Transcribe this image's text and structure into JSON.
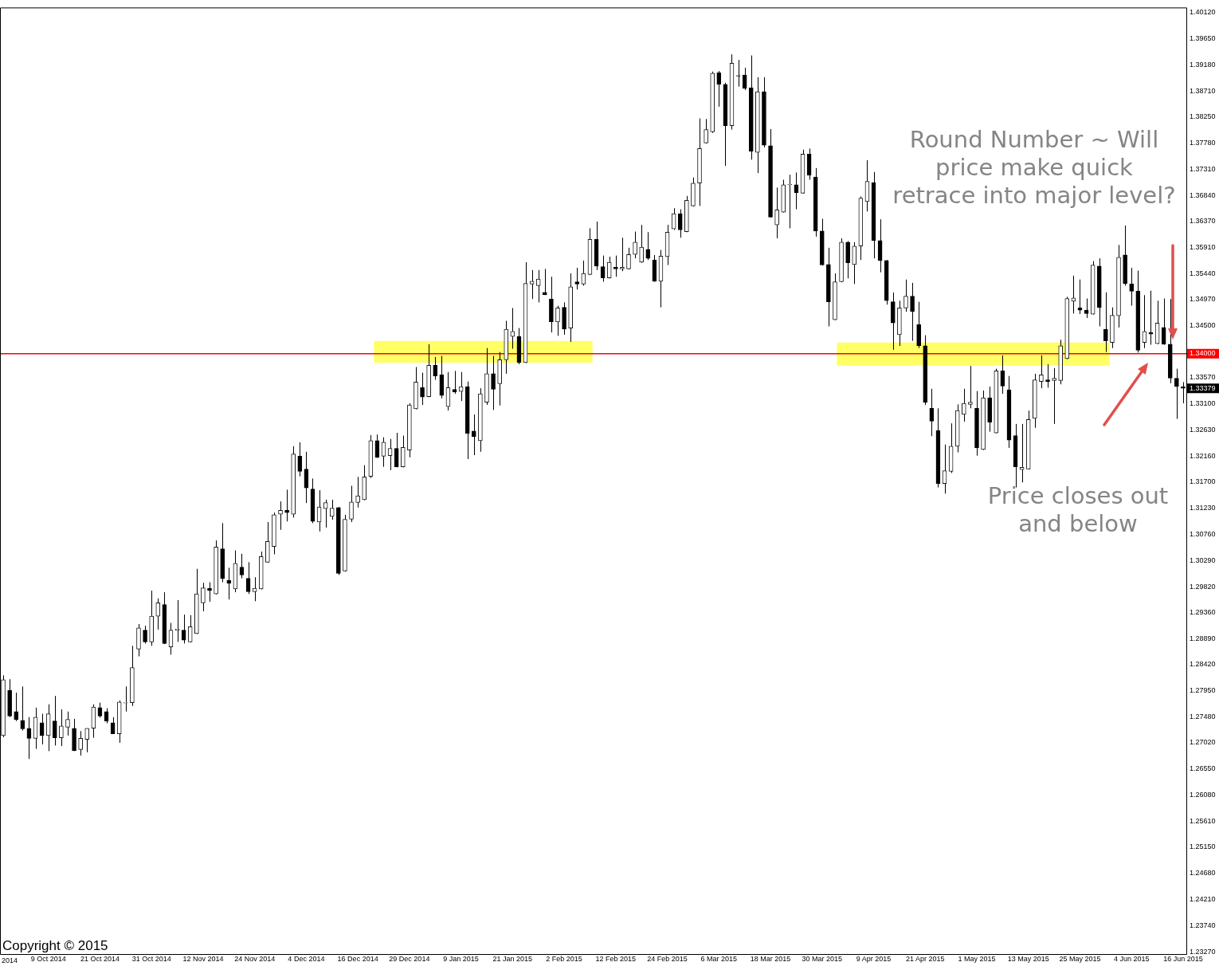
{
  "chart_data": {
    "type": "candlestick",
    "categories": [
      null,
      null,
      null,
      null,
      null,
      null,
      null,
      "9 Oct 2014",
      null,
      null,
      null,
      null,
      null,
      null,
      null,
      "21 Oct 2014",
      null,
      null,
      null,
      null,
      null,
      null,
      null,
      "31 Oct 2014",
      null,
      null,
      null,
      null,
      null,
      null,
      null,
      "12 Nov 2014",
      null,
      null,
      null,
      null,
      null,
      null,
      null,
      "24 Nov 2014",
      null,
      null,
      null,
      null,
      null,
      null,
      null,
      "4 Dec 2014",
      null,
      null,
      null,
      null,
      null,
      null,
      null,
      "16 Dec 2014",
      null,
      null,
      null,
      null,
      null,
      null,
      null,
      "29 Dec 2014",
      null,
      null,
      null,
      null,
      null,
      null,
      null,
      "9 Jan 2015",
      null,
      null,
      null,
      null,
      null,
      null,
      null,
      "21 Jan 2015",
      null,
      null,
      null,
      null,
      null,
      null,
      null,
      "2 Feb 2015",
      null,
      null,
      null,
      null,
      null,
      null,
      null,
      "12 Feb 2015",
      null,
      null,
      null,
      null,
      null,
      null,
      null,
      "24 Feb 2015",
      null,
      null,
      null,
      null,
      null,
      null,
      null,
      "6 Mar 2015",
      null,
      null,
      null,
      null,
      null,
      null,
      null,
      "18 Mar 2015",
      null,
      null,
      null,
      null,
      null,
      null,
      null,
      "30 Mar 2015",
      null,
      null,
      null,
      null,
      null,
      null,
      null,
      "9 Apr 2015",
      null,
      null,
      null,
      null,
      null,
      null,
      null,
      "21 Apr 2015",
      null,
      null,
      null,
      null,
      null,
      null,
      null,
      "1 May 2015",
      null,
      null,
      null,
      null,
      null,
      null,
      null,
      "13 May 2015",
      null,
      null,
      null,
      null,
      null,
      null,
      null,
      "25 May 2015",
      null,
      null,
      null,
      null,
      null,
      null,
      null,
      "4 Jun 2015",
      null,
      null,
      null,
      null,
      null,
      null,
      null,
      "16 Jun 2015"
    ],
    "ohlc": [
      [
        1.2715,
        1.2823,
        1.2712,
        1.2815
      ],
      [
        1.2796,
        1.2816,
        1.2748,
        1.275
      ],
      [
        1.2758,
        1.2792,
        1.2741,
        1.2744
      ],
      [
        1.2742,
        1.2803,
        1.2724,
        1.2727
      ],
      [
        1.2728,
        1.2748,
        1.2673,
        1.271
      ],
      [
        1.271,
        1.2765,
        1.2691,
        1.2748
      ],
      [
        1.2738,
        1.2754,
        1.2699,
        1.2715
      ],
      [
        1.2715,
        1.2771,
        1.2687,
        1.2754
      ],
      [
        1.2741,
        1.2786,
        1.2697,
        1.2711
      ],
      [
        1.2711,
        1.2762,
        1.2696,
        1.2732
      ],
      [
        1.273,
        1.2758,
        1.2715,
        1.2744
      ],
      [
        1.2728,
        1.2745,
        1.2687,
        1.2688
      ],
      [
        1.269,
        1.2723,
        1.2679,
        1.271
      ],
      [
        1.2708,
        1.2728,
        1.2685,
        1.2728
      ],
      [
        1.2728,
        1.2771,
        1.2711,
        1.2766
      ],
      [
        1.2765,
        1.2774,
        1.2747,
        1.275
      ],
      [
        1.2758,
        1.2764,
        1.2737,
        1.2741
      ],
      [
        1.2738,
        1.2748,
        1.2718,
        1.2718
      ],
      [
        1.2718,
        1.2778,
        1.2702,
        1.2775
      ],
      [
        1.2773,
        1.2803,
        1.2758,
        1.2774
      ],
      [
        1.2774,
        1.2876,
        1.2768,
        1.2837
      ],
      [
        1.287,
        1.2915,
        1.2857,
        1.2908
      ],
      [
        1.2904,
        1.2912,
        1.288,
        1.2883
      ],
      [
        1.2883,
        1.2975,
        1.2876,
        1.2929
      ],
      [
        1.2929,
        1.2961,
        1.2905,
        1.2953
      ],
      [
        1.295,
        1.2972,
        1.2879,
        1.288
      ],
      [
        1.2874,
        1.2917,
        1.286,
        1.2904
      ],
      [
        1.2904,
        1.2958,
        1.2883,
        1.2906
      ],
      [
        1.2904,
        1.2932,
        1.288,
        1.2886
      ],
      [
        1.2883,
        1.2931,
        1.2882,
        1.291
      ],
      [
        1.2898,
        1.3014,
        1.2897,
        1.2969
      ],
      [
        1.2953,
        1.2989,
        1.2938,
        1.298
      ],
      [
        1.2979,
        1.299,
        1.2955,
        1.2975
      ],
      [
        1.2969,
        1.3065,
        1.2968,
        1.3053
      ],
      [
        1.305,
        1.3096,
        1.299,
        1.2997
      ],
      [
        1.2993,
        1.3016,
        1.2959,
        1.2988
      ],
      [
        1.2978,
        1.3047,
        1.2972,
        1.3024
      ],
      [
        1.3017,
        1.3041,
        1.2997,
        1.3003
      ],
      [
        1.2997,
        1.3026,
        1.2969,
        1.2973
      ],
      [
        1.2973,
        1.2999,
        1.2956,
        1.2979
      ],
      [
        1.2978,
        1.3045,
        1.2977,
        1.3036
      ],
      [
        1.3026,
        1.3098,
        1.3025,
        1.3063
      ],
      [
        1.3054,
        1.3115,
        1.304,
        1.3111
      ],
      [
        1.3112,
        1.3135,
        1.3084,
        1.3119
      ],
      [
        1.3119,
        1.3156,
        1.3099,
        1.3115
      ],
      [
        1.3112,
        1.3234,
        1.3106,
        1.322
      ],
      [
        1.3216,
        1.3241,
        1.318,
        1.3189
      ],
      [
        1.3193,
        1.3224,
        1.3132,
        1.3159
      ],
      [
        1.3157,
        1.3176,
        1.3096,
        1.3099
      ],
      [
        1.3098,
        1.3155,
        1.3081,
        1.3125
      ],
      [
        1.3122,
        1.3138,
        1.3088,
        1.3133
      ],
      [
        1.3108,
        1.3138,
        1.3102,
        1.3123
      ],
      [
        1.3124,
        1.3125,
        1.3003,
        1.3006
      ],
      [
        1.301,
        1.3111,
        1.3009,
        1.3103
      ],
      [
        1.3103,
        1.3163,
        1.3098,
        1.3134
      ],
      [
        1.3133,
        1.3179,
        1.3124,
        1.3145
      ],
      [
        1.3138,
        1.32,
        1.3137,
        1.3179
      ],
      [
        1.318,
        1.3254,
        1.3177,
        1.3244
      ],
      [
        1.3244,
        1.3255,
        1.3213,
        1.3214
      ],
      [
        1.3216,
        1.325,
        1.3197,
        1.3241
      ],
      [
        1.3217,
        1.3247,
        1.3191,
        1.323
      ],
      [
        1.323,
        1.3258,
        1.3196,
        1.3197
      ],
      [
        1.3197,
        1.3253,
        1.3196,
        1.3232
      ],
      [
        1.3227,
        1.3311,
        1.3214,
        1.3308
      ],
      [
        1.3301,
        1.3376,
        1.33,
        1.3349
      ],
      [
        1.3339,
        1.3366,
        1.3308,
        1.3322
      ],
      [
        1.3323,
        1.3417,
        1.3322,
        1.3379
      ],
      [
        1.3379,
        1.3394,
        1.3353,
        1.336
      ],
      [
        1.3362,
        1.3396,
        1.332,
        1.3325
      ],
      [
        1.3305,
        1.3367,
        1.3298,
        1.3339
      ],
      [
        1.3336,
        1.3369,
        1.3328,
        1.3331
      ],
      [
        1.3332,
        1.3367,
        1.3315,
        1.3341
      ],
      [
        1.3341,
        1.335,
        1.3211,
        1.3257
      ],
      [
        1.3261,
        1.3291,
        1.3218,
        1.3251
      ],
      [
        1.3244,
        1.3338,
        1.3224,
        1.3328
      ],
      [
        1.3313,
        1.341,
        1.3308,
        1.3364
      ],
      [
        1.3364,
        1.3396,
        1.3299,
        1.3336
      ],
      [
        1.3346,
        1.3403,
        1.3307,
        1.3389
      ],
      [
        1.3389,
        1.3459,
        1.3364,
        1.3444
      ],
      [
        1.3431,
        1.3482,
        1.3409,
        1.344
      ],
      [
        1.3431,
        1.3446,
        1.3381,
        1.3384
      ],
      [
        1.3384,
        1.3564,
        1.3383,
        1.3526
      ],
      [
        1.3525,
        1.355,
        1.3498,
        1.353
      ],
      [
        1.3522,
        1.355,
        1.3492,
        1.3534
      ],
      [
        1.351,
        1.3552,
        1.3505,
        1.3506
      ],
      [
        1.3498,
        1.3538,
        1.3438,
        1.3457
      ],
      [
        1.3457,
        1.3486,
        1.3432,
        1.3482
      ],
      [
        1.3483,
        1.3492,
        1.3434,
        1.3444
      ],
      [
        1.3446,
        1.3544,
        1.3421,
        1.352
      ],
      [
        1.3529,
        1.3554,
        1.3515,
        1.3525
      ],
      [
        1.3525,
        1.3567,
        1.3522,
        1.3544
      ],
      [
        1.3542,
        1.3625,
        1.3541,
        1.3605
      ],
      [
        1.3605,
        1.3637,
        1.355,
        1.3557
      ],
      [
        1.3556,
        1.3576,
        1.3529,
        1.3536
      ],
      [
        1.3536,
        1.3574,
        1.3535,
        1.3564
      ],
      [
        1.3555,
        1.3576,
        1.3538,
        1.3552
      ],
      [
        1.3552,
        1.3608,
        1.3548,
        1.3555
      ],
      [
        1.3552,
        1.359,
        1.3551,
        1.3578
      ],
      [
        1.3578,
        1.3619,
        1.3571,
        1.36
      ],
      [
        1.3564,
        1.3631,
        1.3563,
        1.3591
      ],
      [
        1.3587,
        1.3618,
        1.3568,
        1.3571
      ],
      [
        1.3568,
        1.3577,
        1.3529,
        1.353
      ],
      [
        1.353,
        1.3586,
        1.3483,
        1.3575
      ],
      [
        1.3574,
        1.3631,
        1.3559,
        1.3618
      ],
      [
        1.3624,
        1.3661,
        1.3622,
        1.3651
      ],
      [
        1.3651,
        1.3659,
        1.3608,
        1.3622
      ],
      [
        1.3619,
        1.3683,
        1.3618,
        1.3675
      ],
      [
        1.3665,
        1.3716,
        1.3664,
        1.3706
      ],
      [
        1.3706,
        1.3822,
        1.3665,
        1.3768
      ],
      [
        1.3778,
        1.3821,
        1.3777,
        1.3802
      ],
      [
        1.3798,
        1.3906,
        1.3796,
        1.3903
      ],
      [
        1.3904,
        1.3907,
        1.3843,
        1.3883
      ],
      [
        1.3883,
        1.3886,
        1.3737,
        1.3809
      ],
      [
        1.3809,
        1.3937,
        1.3802,
        1.3921
      ],
      [
        1.3899,
        1.3927,
        1.3879,
        1.3898
      ],
      [
        1.39,
        1.3913,
        1.3873,
        1.3876
      ],
      [
        1.3877,
        1.3935,
        1.3748,
        1.3763
      ],
      [
        1.3761,
        1.3896,
        1.3724,
        1.387
      ],
      [
        1.387,
        1.3896,
        1.377,
        1.3774
      ],
      [
        1.3773,
        1.3803,
        1.3644,
        1.3645
      ],
      [
        1.3631,
        1.3698,
        1.3607,
        1.3658
      ],
      [
        1.3654,
        1.3712,
        1.3653,
        1.3703
      ],
      [
        1.3703,
        1.3721,
        1.3625,
        1.3704
      ],
      [
        1.3703,
        1.3725,
        1.3659,
        1.3689
      ],
      [
        1.3688,
        1.3766,
        1.3687,
        1.3758
      ],
      [
        1.3758,
        1.3768,
        1.3712,
        1.372
      ],
      [
        1.3717,
        1.3733,
        1.361,
        1.362
      ],
      [
        1.362,
        1.3642,
        1.3558,
        1.3559
      ],
      [
        1.356,
        1.359,
        1.3449,
        1.3493
      ],
      [
        1.3461,
        1.3544,
        1.346,
        1.3529
      ],
      [
        1.3529,
        1.3607,
        1.3528,
        1.36
      ],
      [
        1.36,
        1.3602,
        1.3535,
        1.3563
      ],
      [
        1.356,
        1.36,
        1.3525,
        1.3593
      ],
      [
        1.3593,
        1.3682,
        1.3568,
        1.3679
      ],
      [
        1.3673,
        1.3747,
        1.3655,
        1.3709
      ],
      [
        1.3707,
        1.3726,
        1.3571,
        1.3603
      ],
      [
        1.3603,
        1.3641,
        1.3546,
        1.3567
      ],
      [
        1.3567,
        1.3568,
        1.3488,
        1.3495
      ],
      [
        1.3493,
        1.351,
        1.3407,
        1.3455
      ],
      [
        1.3434,
        1.3495,
        1.3414,
        1.3482
      ],
      [
        1.3482,
        1.3533,
        1.3475,
        1.3503
      ],
      [
        1.3503,
        1.3527,
        1.3423,
        1.3476
      ],
      [
        1.3452,
        1.3493,
        1.341,
        1.3414
      ],
      [
        1.3414,
        1.3433,
        1.3308,
        1.3313
      ],
      [
        1.3302,
        1.3337,
        1.3252,
        1.3279
      ],
      [
        1.3262,
        1.3302,
        1.316,
        1.3167
      ],
      [
        1.3167,
        1.3237,
        1.3149,
        1.319
      ],
      [
        1.3189,
        1.3275,
        1.3186,
        1.3234
      ],
      [
        1.3234,
        1.3309,
        1.3223,
        1.3298
      ],
      [
        1.3291,
        1.3337,
        1.3278,
        1.3311
      ],
      [
        1.3309,
        1.3378,
        1.3302,
        1.3313
      ],
      [
        1.3302,
        1.3333,
        1.3217,
        1.3231
      ],
      [
        1.3228,
        1.3334,
        1.3227,
        1.3321
      ],
      [
        1.3321,
        1.3341,
        1.326,
        1.3277
      ],
      [
        1.3258,
        1.3373,
        1.3257,
        1.3369
      ],
      [
        1.3369,
        1.3397,
        1.3328,
        1.3342
      ],
      [
        1.3335,
        1.336,
        1.3231,
        1.3245
      ],
      [
        1.3253,
        1.3274,
        1.316,
        1.3197
      ],
      [
        1.3192,
        1.3274,
        1.3169,
        1.3196
      ],
      [
        1.3193,
        1.3298,
        1.3192,
        1.3282
      ],
      [
        1.3284,
        1.3364,
        1.3267,
        1.3353
      ],
      [
        1.335,
        1.3397,
        1.3338,
        1.3362
      ],
      [
        1.3353,
        1.3381,
        1.3339,
        1.335
      ],
      [
        1.3352,
        1.3374,
        1.3274,
        1.3356
      ],
      [
        1.3352,
        1.3425,
        1.3345,
        1.3414
      ],
      [
        1.3391,
        1.3502,
        1.339,
        1.3499
      ],
      [
        1.3494,
        1.354,
        1.3472,
        1.35
      ],
      [
        1.3482,
        1.3533,
        1.3471,
        1.3478
      ],
      [
        1.3478,
        1.3499,
        1.3464,
        1.3472
      ],
      [
        1.3471,
        1.3566,
        1.347,
        1.3559
      ],
      [
        1.3557,
        1.3571,
        1.3449,
        1.3483
      ],
      [
        1.3444,
        1.351,
        1.3403,
        1.3423
      ],
      [
        1.342,
        1.3483,
        1.341,
        1.3469
      ],
      [
        1.3468,
        1.3595,
        1.3447,
        1.3573
      ],
      [
        1.3577,
        1.363,
        1.3522,
        1.3526
      ],
      [
        1.3525,
        1.3554,
        1.3486,
        1.3512
      ],
      [
        1.3512,
        1.3549,
        1.3402,
        1.3406
      ],
      [
        1.342,
        1.3505,
        1.341,
        1.344
      ],
      [
        1.3438,
        1.3513,
        1.3416,
        1.3435
      ],
      [
        1.3418,
        1.3495,
        1.3417,
        1.3455
      ],
      [
        1.3447,
        1.3499,
        1.3416,
        1.3417
      ],
      [
        1.3417,
        1.3498,
        1.3347,
        1.3356
      ],
      [
        1.3356,
        1.3373,
        1.3283,
        1.3341
      ],
      [
        1.3341,
        1.3349,
        1.3311,
        1.3338
      ]
    ],
    "ylim": [
      1.2323,
      1.4021
    ],
    "yticks": [
      {
        "value": 1.4012,
        "label": "1.40120"
      },
      {
        "value": 1.3965,
        "label": "1.39650"
      },
      {
        "value": 1.3918,
        "label": "1.39180"
      },
      {
        "value": 1.3871,
        "label": "1.38710"
      },
      {
        "value": 1.3825,
        "label": "1.38250"
      },
      {
        "value": 1.3778,
        "label": "1.37780"
      },
      {
        "value": 1.3731,
        "label": "1.37310"
      },
      {
        "value": 1.3684,
        "label": "1.36840"
      },
      {
        "value": 1.3637,
        "label": "1.36370"
      },
      {
        "value": 1.3591,
        "label": "1.35910"
      },
      {
        "value": 1.3544,
        "label": "1.35440"
      },
      {
        "value": 1.3497,
        "label": "1.34970"
      },
      {
        "value": 1.345,
        "label": "1.34500"
      },
      {
        "value": 1.3357,
        "label": "1.33570"
      },
      {
        "value": 1.331,
        "label": "1.33100"
      },
      {
        "value": 1.3263,
        "label": "1.32630"
      },
      {
        "value": 1.3216,
        "label": "1.32160"
      },
      {
        "value": 1.317,
        "label": "1.31700"
      },
      {
        "value": 1.3123,
        "label": "1.31230"
      },
      {
        "value": 1.3076,
        "label": "1.30760"
      },
      {
        "value": 1.3029,
        "label": "1.30290"
      },
      {
        "value": 1.2982,
        "label": "1.29820"
      },
      {
        "value": 1.2936,
        "label": "1.29360"
      },
      {
        "value": 1.2889,
        "label": "1.28890"
      },
      {
        "value": 1.2842,
        "label": "1.28420"
      },
      {
        "value": 1.2795,
        "label": "1.27950"
      },
      {
        "value": 1.2748,
        "label": "1.27480"
      },
      {
        "value": 1.2702,
        "label": "1.27020"
      },
      {
        "value": 1.2655,
        "label": "1.26550"
      },
      {
        "value": 1.2608,
        "label": "1.26080"
      },
      {
        "value": 1.2561,
        "label": "1.25610"
      },
      {
        "value": 1.2515,
        "label": "1.25150"
      },
      {
        "value": 1.2468,
        "label": "1.24680"
      },
      {
        "value": 1.2421,
        "label": "1.24210"
      },
      {
        "value": 1.2374,
        "label": "1.23740"
      },
      {
        "value": 1.2327,
        "label": "1.23270"
      }
    ],
    "ref_lines": [
      {
        "axis": "y",
        "value": 1.34,
        "label": "1.34000",
        "color": "#ff0000"
      }
    ],
    "bands": [
      {
        "axis": "y",
        "from": 1.3384,
        "to": 1.3423,
        "color": "#ffff66"
      },
      {
        "axis": "y",
        "from": 1.3379,
        "to": 1.342,
        "color": "#ffff66"
      }
    ],
    "annotations": [
      "Round Number ~ Will price make quick retrace into major level?",
      "Price closes out and below",
      "Copyright © 2015",
      "2014",
      {
        "text": "1.33379",
        "y": 1.33379
      }
    ]
  }
}
